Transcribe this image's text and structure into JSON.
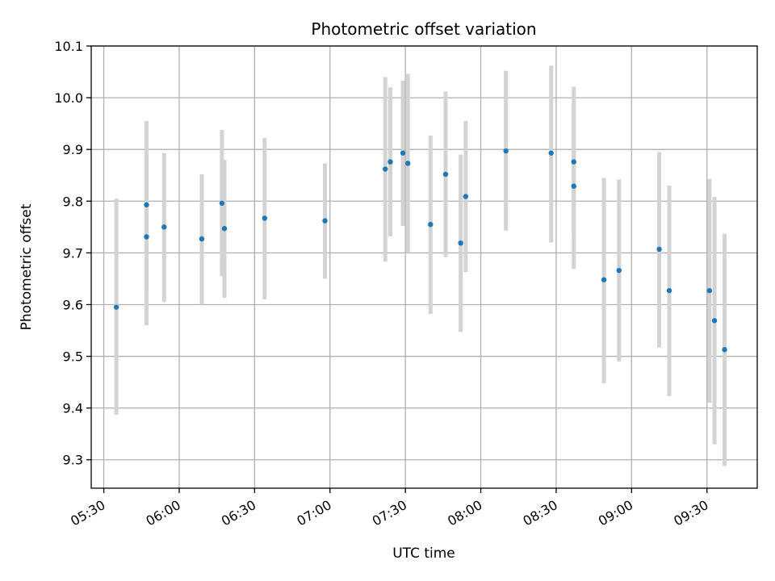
{
  "chart_data": {
    "type": "scatter",
    "title": "Photometric offset variation",
    "xlabel": "UTC time",
    "ylabel": "Photometric offset",
    "x_unit": "UTC time (HH:MM)",
    "xlim": [
      "05:25",
      "09:50"
    ],
    "ylim": [
      9.245,
      10.1
    ],
    "x_ticks": [
      "05:30",
      "06:00",
      "06:30",
      "07:00",
      "07:30",
      "08:00",
      "08:30",
      "09:00",
      "09:30"
    ],
    "y_ticks": [
      "9.3",
      "9.4",
      "9.5",
      "9.6",
      "9.7",
      "9.8",
      "9.9",
      "10.0",
      "10.1"
    ],
    "grid": true,
    "colors": {
      "point": "#1f77b4",
      "errorbar": "#d3d3d3",
      "grid": "#b0b0b0"
    },
    "points": [
      {
        "x": "05:35",
        "y": 9.595,
        "y_low": 9.387,
        "y_high": 9.805
      },
      {
        "x": "05:47",
        "y": 9.793,
        "y_low": 9.632,
        "y_high": 9.955
      },
      {
        "x": "05:47",
        "y": 9.731,
        "y_low": 9.56,
        "y_high": 9.9
      },
      {
        "x": "05:54",
        "y": 9.75,
        "y_low": 9.605,
        "y_high": 9.893
      },
      {
        "x": "06:09",
        "y": 9.727,
        "y_low": 9.6,
        "y_high": 9.852
      },
      {
        "x": "06:17",
        "y": 9.796,
        "y_low": 9.655,
        "y_high": 9.938
      },
      {
        "x": "06:18",
        "y": 9.747,
        "y_low": 9.613,
        "y_high": 9.88
      },
      {
        "x": "06:34",
        "y": 9.767,
        "y_low": 9.61,
        "y_high": 9.922
      },
      {
        "x": "06:58",
        "y": 9.762,
        "y_low": 9.65,
        "y_high": 9.873
      },
      {
        "x": "07:22",
        "y": 9.862,
        "y_low": 9.683,
        "y_high": 10.04
      },
      {
        "x": "07:24",
        "y": 9.876,
        "y_low": 9.732,
        "y_high": 10.02
      },
      {
        "x": "07:29",
        "y": 9.893,
        "y_low": 9.752,
        "y_high": 10.033
      },
      {
        "x": "07:31",
        "y": 9.873,
        "y_low": 9.7,
        "y_high": 10.046
      },
      {
        "x": "07:40",
        "y": 9.755,
        "y_low": 9.582,
        "y_high": 9.927
      },
      {
        "x": "07:46",
        "y": 9.852,
        "y_low": 9.692,
        "y_high": 10.012
      },
      {
        "x": "07:52",
        "y": 9.719,
        "y_low": 9.547,
        "y_high": 9.89
      },
      {
        "x": "07:54",
        "y": 9.809,
        "y_low": 9.663,
        "y_high": 9.955
      },
      {
        "x": "08:10",
        "y": 9.897,
        "y_low": 9.743,
        "y_high": 10.052
      },
      {
        "x": "08:28",
        "y": 9.893,
        "y_low": 9.72,
        "y_high": 10.062
      },
      {
        "x": "08:37",
        "y": 9.876,
        "y_low": 9.733,
        "y_high": 10.021
      },
      {
        "x": "08:37",
        "y": 9.829,
        "y_low": 9.669,
        "y_high": 9.99
      },
      {
        "x": "08:49",
        "y": 9.648,
        "y_low": 9.448,
        "y_high": 9.845
      },
      {
        "x": "08:55",
        "y": 9.666,
        "y_low": 9.49,
        "y_high": 9.842
      },
      {
        "x": "09:11",
        "y": 9.707,
        "y_low": 9.517,
        "y_high": 9.895
      },
      {
        "x": "09:15",
        "y": 9.627,
        "y_low": 9.423,
        "y_high": 9.83
      },
      {
        "x": "09:31",
        "y": 9.627,
        "y_low": 9.41,
        "y_high": 9.843
      },
      {
        "x": "09:33",
        "y": 9.569,
        "y_low": 9.33,
        "y_high": 9.808
      },
      {
        "x": "09:37",
        "y": 9.513,
        "y_low": 9.288,
        "y_high": 9.737
      }
    ]
  }
}
